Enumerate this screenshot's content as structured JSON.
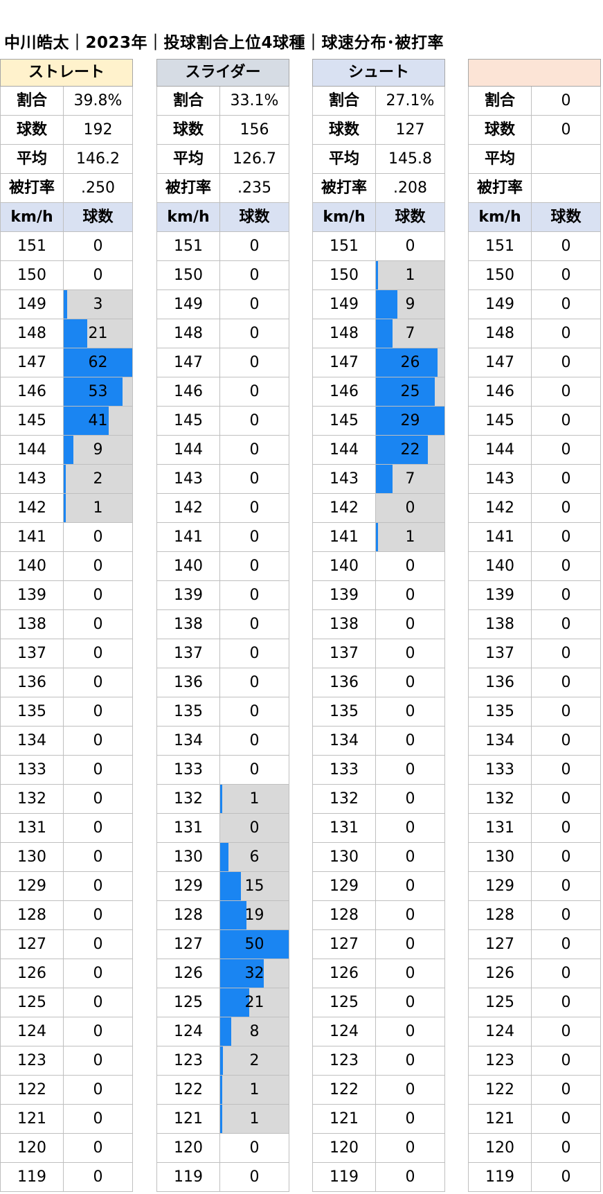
{
  "title": "中川皓太｜2023年｜投球割合上位4球種｜球速分布･被打率",
  "colors": {
    "bar": "#1a85f2",
    "barTrack": "#d9d9d9",
    "columnHeader": "#d9e1f2"
  },
  "labels": {
    "ratio": "割合",
    "count": "球数",
    "avg": "平均",
    "ba": "被打率",
    "kmh": "km/h",
    "balls": "球数"
  },
  "chart_data": {
    "type": "table",
    "speeds_kmh": [
      151,
      150,
      149,
      148,
      147,
      146,
      145,
      144,
      143,
      142,
      141,
      140,
      139,
      138,
      137,
      136,
      135,
      134,
      133,
      132,
      131,
      130,
      129,
      128,
      127,
      126,
      125,
      124,
      123,
      122,
      121,
      120,
      119
    ],
    "pitches": [
      {
        "name": "ストレート",
        "header_color": "#fff2cc",
        "ratio": "39.8%",
        "count": "192",
        "avg_speed": "146.2",
        "batting_avg": ".250",
        "values": [
          0,
          0,
          3,
          21,
          62,
          53,
          41,
          9,
          2,
          1,
          0,
          0,
          0,
          0,
          0,
          0,
          0,
          0,
          0,
          0,
          0,
          0,
          0,
          0,
          0,
          0,
          0,
          0,
          0,
          0,
          0,
          0,
          0
        ]
      },
      {
        "name": "スライダー",
        "header_color": "#d6dce4",
        "ratio": "33.1%",
        "count": "156",
        "avg_speed": "126.7",
        "batting_avg": ".235",
        "values": [
          0,
          0,
          0,
          0,
          0,
          0,
          0,
          0,
          0,
          0,
          0,
          0,
          0,
          0,
          0,
          0,
          0,
          0,
          0,
          1,
          0,
          6,
          15,
          19,
          50,
          32,
          21,
          8,
          2,
          1,
          1,
          0,
          0
        ]
      },
      {
        "name": "シュート",
        "header_color": "#d9e1f2",
        "ratio": "27.1%",
        "count": "127",
        "avg_speed": "145.8",
        "batting_avg": ".208",
        "values": [
          0,
          1,
          9,
          7,
          26,
          25,
          29,
          22,
          7,
          0,
          1,
          0,
          0,
          0,
          0,
          0,
          0,
          0,
          0,
          0,
          0,
          0,
          0,
          0,
          0,
          0,
          0,
          0,
          0,
          0,
          0,
          0,
          0
        ]
      },
      {
        "name": "",
        "header_color": "#fce4d6",
        "ratio": "0",
        "count": "0",
        "avg_speed": "",
        "batting_avg": "",
        "values": [
          0,
          0,
          0,
          0,
          0,
          0,
          0,
          0,
          0,
          0,
          0,
          0,
          0,
          0,
          0,
          0,
          0,
          0,
          0,
          0,
          0,
          0,
          0,
          0,
          0,
          0,
          0,
          0,
          0,
          0,
          0,
          0,
          0
        ]
      }
    ]
  }
}
